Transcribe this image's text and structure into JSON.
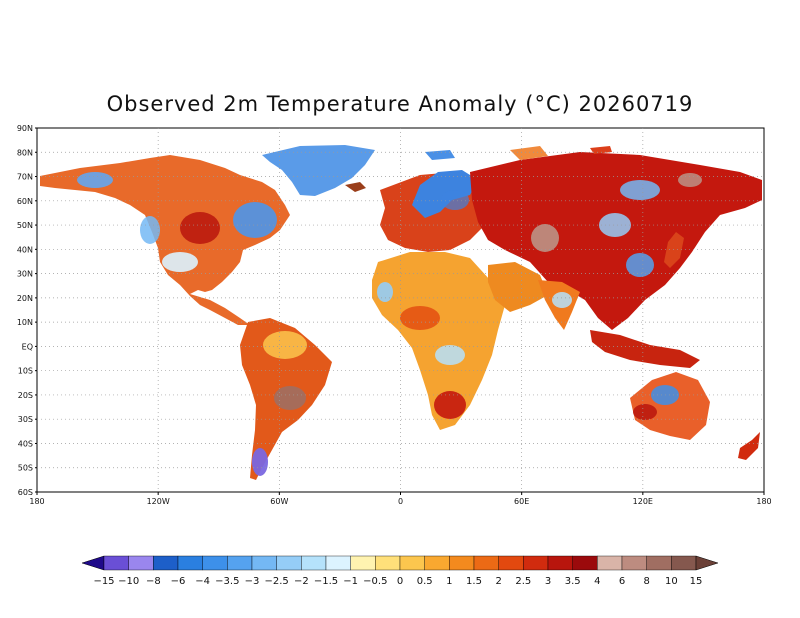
{
  "title": "Observed 2m Temperature Anomaly (°C) 20260719",
  "lat_labels": [
    "90N",
    "80N",
    "70N",
    "60N",
    "50N",
    "40N",
    "30N",
    "20N",
    "10N",
    "EQ",
    "10S",
    "20S",
    "30S",
    "40S",
    "50S",
    "60S"
  ],
  "lon_labels": [
    "180",
    "120W",
    "60W",
    "0",
    "60E",
    "120E",
    "180"
  ],
  "colorbar": {
    "labels": [
      "-15",
      "-10",
      "-8",
      "-6",
      "-4",
      "-3.5",
      "-3",
      "-2.5",
      "-2",
      "-1.5",
      "-1",
      "-0.5",
      "0",
      "0.5",
      "1",
      "1.5",
      "2",
      "2.5",
      "3",
      "3.5",
      "4",
      "6",
      "8",
      "10",
      "15"
    ],
    "colors": [
      "#2b17a8",
      "#6a4fd6",
      "#9a86ee",
      "#1d5fc9",
      "#2a7fe0",
      "#3d90ea",
      "#55a2ef",
      "#74b8f4",
      "#95cdf7",
      "#b5e2fb",
      "#dcf3ff",
      "#fff3b0",
      "#ffe07a",
      "#fcc64e",
      "#f9a830",
      "#f38a1e",
      "#ec6a15",
      "#e2490f",
      "#d12b0e",
      "#b8150d",
      "#9b0a0c",
      "#d9b4a8",
      "#bd8c80",
      "#a06e62",
      "#85584e"
    ],
    "end_low": "#1f0a8a",
    "end_high": "#6b4037"
  }
}
